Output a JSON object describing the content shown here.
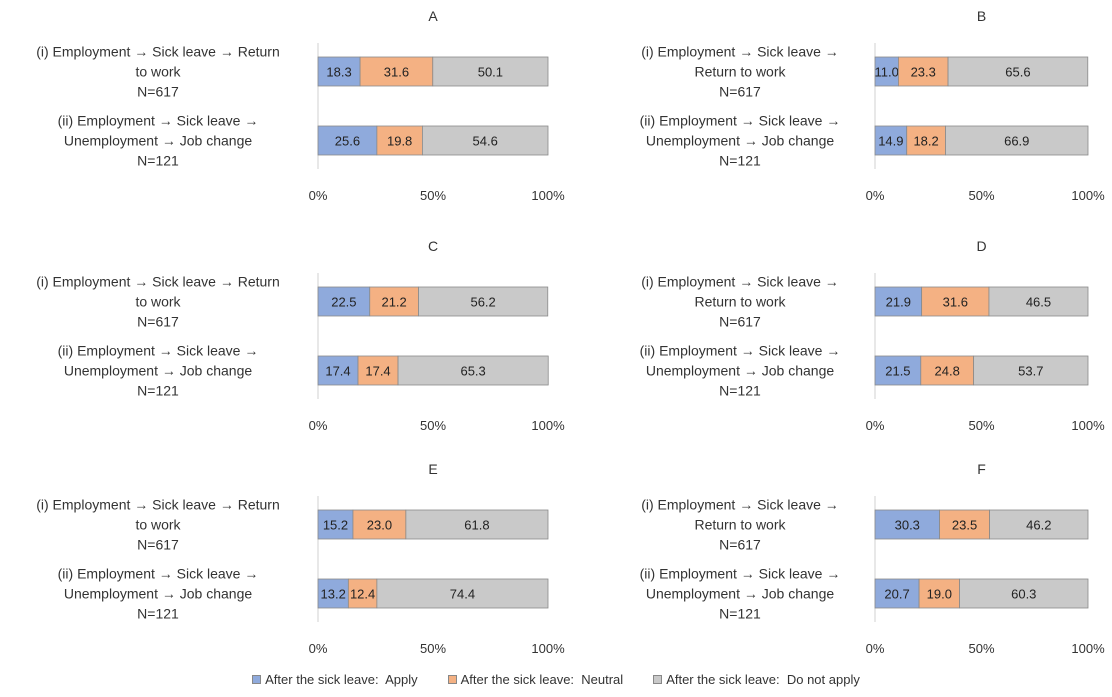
{
  "chart_data": {
    "type": "bar",
    "orientation": "horizontal",
    "stacked": true,
    "legend": {
      "placement": "bottom",
      "items": [
        {
          "label": "After the sick leave:  Apply",
          "color": "#8FAADC"
        },
        {
          "label": "After the sick leave:  Neutral",
          "color": "#F4B183"
        },
        {
          "label": "After the sick leave:  Do not apply",
          "color": "#C9C9C9"
        }
      ]
    },
    "xlim": [
      0,
      100
    ],
    "x_ticks": [
      "0%",
      "50%",
      "100%"
    ],
    "grid": false,
    "panels": [
      {
        "title": "A",
        "categories": [
          {
            "lines": [
              "(i) Employment → Sick leave → Return",
              "to work",
              "N=617"
            ]
          },
          {
            "lines": [
              "(ii) Employment → Sick leave →",
              "Unemployment → Job change",
              "N=121"
            ]
          }
        ],
        "series": [
          {
            "values": [
              18.3,
              25.6
            ],
            "color": "#8FAADC"
          },
          {
            "values": [
              31.6,
              19.8
            ],
            "color": "#F4B183"
          },
          {
            "values": [
              50.1,
              54.6
            ],
            "color": "#C9C9C9"
          }
        ]
      },
      {
        "title": "B",
        "categories": [
          {
            "lines": [
              "(i) Employment → Sick leave →",
              "Return to work",
              "N=617"
            ]
          },
          {
            "lines": [
              "(ii) Employment → Sick leave →",
              "Unemployment → Job change",
              "N=121"
            ]
          }
        ],
        "series": [
          {
            "values": [
              11.0,
              14.9
            ],
            "color": "#8FAADC"
          },
          {
            "values": [
              23.3,
              18.2
            ],
            "color": "#F4B183"
          },
          {
            "values": [
              65.6,
              66.9
            ],
            "color": "#C9C9C9"
          }
        ]
      },
      {
        "title": "C",
        "categories": [
          {
            "lines": [
              "(i) Employment → Sick leave → Return",
              "to work",
              "N=617"
            ]
          },
          {
            "lines": [
              "(ii) Employment → Sick leave →",
              "Unemployment → Job change",
              "N=121"
            ]
          }
        ],
        "series": [
          {
            "values": [
              22.5,
              17.4
            ],
            "color": "#8FAADC"
          },
          {
            "values": [
              21.2,
              17.4
            ],
            "color": "#F4B183"
          },
          {
            "values": [
              56.2,
              65.3
            ],
            "color": "#C9C9C9"
          }
        ]
      },
      {
        "title": "D",
        "categories": [
          {
            "lines": [
              "(i) Employment → Sick leave →",
              "Return to work",
              "N=617"
            ]
          },
          {
            "lines": [
              "(ii) Employment → Sick leave →",
              "Unemployment → Job change",
              "N=121"
            ]
          }
        ],
        "series": [
          {
            "values": [
              21.9,
              21.5
            ],
            "color": "#8FAADC"
          },
          {
            "values": [
              31.6,
              24.8
            ],
            "color": "#F4B183"
          },
          {
            "values": [
              46.5,
              53.7
            ],
            "color": "#C9C9C9"
          }
        ]
      },
      {
        "title": "E",
        "categories": [
          {
            "lines": [
              "(i) Employment → Sick leave → Return",
              "to work",
              "N=617"
            ]
          },
          {
            "lines": [
              "(ii) Employment → Sick leave →",
              "Unemployment → Job change",
              "N=121"
            ]
          }
        ],
        "series": [
          {
            "values": [
              15.2,
              13.2
            ],
            "color": "#8FAADC"
          },
          {
            "values": [
              23.0,
              12.4
            ],
            "color": "#F4B183"
          },
          {
            "values": [
              61.8,
              74.4
            ],
            "color": "#C9C9C9"
          }
        ]
      },
      {
        "title": "F",
        "categories": [
          {
            "lines": [
              "(i) Employment → Sick leave →",
              "Return to work",
              "N=617"
            ]
          },
          {
            "lines": [
              "(ii) Employment → Sick leave →",
              "Unemployment → Job change",
              "N=121"
            ]
          }
        ],
        "series": [
          {
            "values": [
              30.3,
              20.7
            ],
            "color": "#8FAADC"
          },
          {
            "values": [
              23.5,
              19.0
            ],
            "color": "#F4B183"
          },
          {
            "values": [
              46.2,
              60.3
            ],
            "color": "#C9C9C9"
          }
        ]
      }
    ]
  }
}
